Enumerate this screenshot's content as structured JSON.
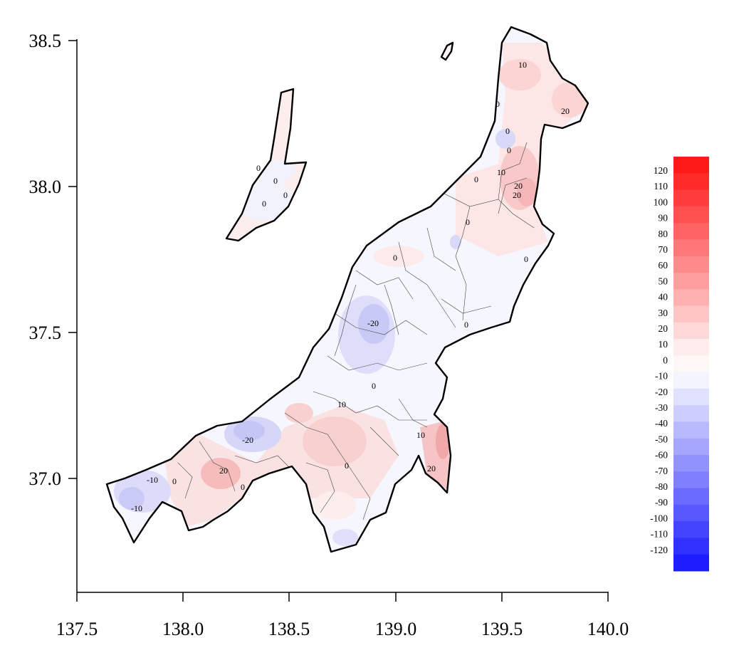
{
  "axes": {
    "x_ticks": [
      "137.5",
      "138.0",
      "138.5",
      "139.0",
      "139.5",
      "140.0"
    ],
    "y_ticks": [
      "38.5",
      "38.0",
      "37.5",
      "37.0"
    ]
  },
  "legend": {
    "levels": [
      "120",
      "110",
      "100",
      "90",
      "80",
      "70",
      "60",
      "50",
      "40",
      "30",
      "20",
      "10",
      "0",
      "-10",
      "-20",
      "-30",
      "-40",
      "-50",
      "-60",
      "-70",
      "-80",
      "-90",
      "-100",
      "-110",
      "-120"
    ],
    "colors_high_to_low": [
      "#ff1a1a",
      "#ff2b2b",
      "#ff3d3d",
      "#ff5050",
      "#ff6363",
      "#ff7777",
      "#ff8a8a",
      "#ff9e9e",
      "#ffb1b1",
      "#ffc5c5",
      "#ffd8d8",
      "#ffecec",
      "#fff6f6",
      "#f4f4ff",
      "#e0e0ff",
      "#cdcdff",
      "#b9b9ff",
      "#a6a6ff",
      "#9292ff",
      "#7f7fff",
      "#6b6bff",
      "#5858ff",
      "#4444ff",
      "#3131ff",
      "#1d1dff"
    ]
  },
  "contour_labels": [
    "10",
    "0",
    "20",
    "0",
    "0",
    "10",
    "20",
    "0",
    "0",
    "0",
    "0",
    "0",
    "-20",
    "0",
    "10",
    "0",
    "10",
    "-20",
    "20",
    "0",
    "-10",
    "0",
    "-10",
    "20",
    "0",
    "20",
    "0",
    "0",
    "0"
  ]
}
